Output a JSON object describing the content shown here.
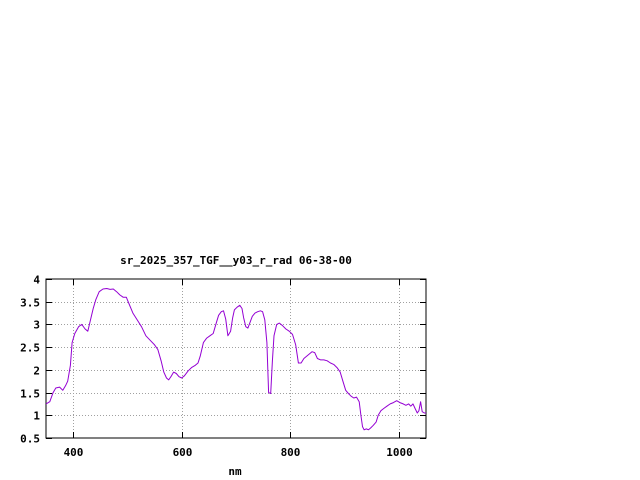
{
  "chart_data": {
    "type": "line",
    "title": "sr_2025_357_TGF__y03_r_rad 06-38-00",
    "xlabel": "nm",
    "ylabel": "",
    "xlim": [
      350,
      1050
    ],
    "ylim": [
      0.5,
      4
    ],
    "grid": true,
    "x_ticks": [
      400,
      600,
      800,
      1000
    ],
    "x_tick_labels": [
      "400",
      "600",
      "800",
      "1000"
    ],
    "y_ticks": [
      0.5,
      1,
      1.5,
      2,
      2.5,
      3,
      3.5,
      4
    ],
    "y_tick_labels": [
      "0.5",
      "1",
      "1.5",
      "2",
      "2.5",
      "3",
      "3.5",
      "4"
    ],
    "series": [
      {
        "color": "#9400d3",
        "points": [
          [
            350,
            1.25
          ],
          [
            357,
            1.3
          ],
          [
            363,
            1.5
          ],
          [
            368,
            1.6
          ],
          [
            375,
            1.62
          ],
          [
            381,
            1.55
          ],
          [
            386,
            1.65
          ],
          [
            390,
            1.75
          ],
          [
            395,
            2.1
          ],
          [
            398,
            2.6
          ],
          [
            403,
            2.8
          ],
          [
            410,
            2.95
          ],
          [
            416,
            3.0
          ],
          [
            422,
            2.9
          ],
          [
            427,
            2.85
          ],
          [
            432,
            3.1
          ],
          [
            437,
            3.35
          ],
          [
            442,
            3.55
          ],
          [
            448,
            3.72
          ],
          [
            455,
            3.78
          ],
          [
            462,
            3.79
          ],
          [
            468,
            3.77
          ],
          [
            474,
            3.78
          ],
          [
            480,
            3.72
          ],
          [
            486,
            3.65
          ],
          [
            492,
            3.6
          ],
          [
            498,
            3.6
          ],
          [
            503,
            3.45
          ],
          [
            510,
            3.25
          ],
          [
            518,
            3.1
          ],
          [
            526,
            2.95
          ],
          [
            534,
            2.75
          ],
          [
            542,
            2.65
          ],
          [
            550,
            2.55
          ],
          [
            556,
            2.45
          ],
          [
            562,
            2.2
          ],
          [
            567,
            1.95
          ],
          [
            572,
            1.82
          ],
          [
            576,
            1.78
          ],
          [
            580,
            1.85
          ],
          [
            585,
            1.95
          ],
          [
            590,
            1.92
          ],
          [
            595,
            1.85
          ],
          [
            600,
            1.82
          ],
          [
            605,
            1.87
          ],
          [
            612,
            1.98
          ],
          [
            618,
            2.05
          ],
          [
            625,
            2.1
          ],
          [
            630,
            2.15
          ],
          [
            634,
            2.3
          ],
          [
            640,
            2.6
          ],
          [
            646,
            2.7
          ],
          [
            652,
            2.75
          ],
          [
            658,
            2.8
          ],
          [
            664,
            3.05
          ],
          [
            668,
            3.2
          ],
          [
            673,
            3.28
          ],
          [
            677,
            3.3
          ],
          [
            681,
            3.12
          ],
          [
            685,
            2.75
          ],
          [
            690,
            2.85
          ],
          [
            694,
            3.15
          ],
          [
            697,
            3.32
          ],
          [
            702,
            3.38
          ],
          [
            707,
            3.42
          ],
          [
            711,
            3.35
          ],
          [
            714,
            3.15
          ],
          [
            718,
            2.95
          ],
          [
            722,
            2.92
          ],
          [
            726,
            3.05
          ],
          [
            730,
            3.18
          ],
          [
            735,
            3.25
          ],
          [
            740,
            3.28
          ],
          [
            745,
            3.3
          ],
          [
            749,
            3.28
          ],
          [
            753,
            3.1
          ],
          [
            757,
            2.6
          ],
          [
            760,
            1.5
          ],
          [
            764,
            1.48
          ],
          [
            767,
            2.2
          ],
          [
            770,
            2.75
          ],
          [
            775,
            3.0
          ],
          [
            780,
            3.03
          ],
          [
            786,
            2.97
          ],
          [
            792,
            2.9
          ],
          [
            798,
            2.85
          ],
          [
            804,
            2.78
          ],
          [
            810,
            2.55
          ],
          [
            815,
            2.15
          ],
          [
            820,
            2.15
          ],
          [
            825,
            2.25
          ],
          [
            830,
            2.3
          ],
          [
            835,
            2.35
          ],
          [
            840,
            2.4
          ],
          [
            845,
            2.38
          ],
          [
            850,
            2.25
          ],
          [
            856,
            2.22
          ],
          [
            862,
            2.22
          ],
          [
            868,
            2.2
          ],
          [
            874,
            2.15
          ],
          [
            880,
            2.12
          ],
          [
            886,
            2.05
          ],
          [
            892,
            1.95
          ],
          [
            897,
            1.75
          ],
          [
            902,
            1.55
          ],
          [
            907,
            1.48
          ],
          [
            912,
            1.42
          ],
          [
            917,
            1.38
          ],
          [
            922,
            1.4
          ],
          [
            927,
            1.3
          ],
          [
            930,
            1.0
          ],
          [
            933,
            0.75
          ],
          [
            936,
            0.68
          ],
          [
            940,
            0.7
          ],
          [
            944,
            0.68
          ],
          [
            948,
            0.72
          ],
          [
            953,
            0.78
          ],
          [
            958,
            0.85
          ],
          [
            962,
            1.0
          ],
          [
            967,
            1.1
          ],
          [
            972,
            1.15
          ],
          [
            978,
            1.2
          ],
          [
            984,
            1.25
          ],
          [
            990,
            1.28
          ],
          [
            996,
            1.32
          ],
          [
            1002,
            1.28
          ],
          [
            1008,
            1.25
          ],
          [
            1013,
            1.22
          ],
          [
            1018,
            1.25
          ],
          [
            1022,
            1.2
          ],
          [
            1026,
            1.25
          ],
          [
            1030,
            1.15
          ],
          [
            1034,
            1.05
          ],
          [
            1037,
            1.1
          ],
          [
            1040,
            1.3
          ],
          [
            1043,
            1.08
          ],
          [
            1047,
            1.05
          ],
          [
            1050,
            1.05
          ]
        ]
      }
    ]
  }
}
